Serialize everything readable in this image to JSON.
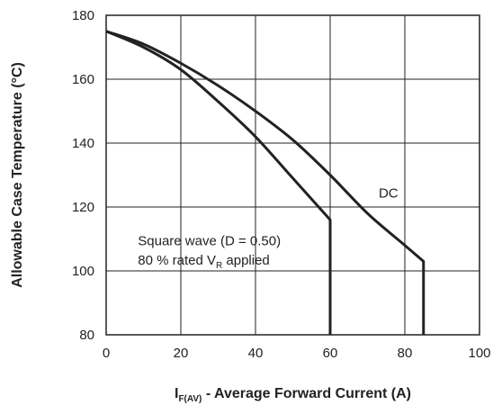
{
  "chart_data": {
    "type": "line",
    "xlabel_main": "I",
    "xlabel_sub": "F(AV)",
    "xlabel_rest": " - Average Forward Current (A)",
    "ylabel": "Allowable Case Temperature (°C)",
    "xlim": [
      0,
      100
    ],
    "ylim": [
      80,
      180
    ],
    "x_ticks": [
      "0",
      "20",
      "40",
      "60",
      "80",
      "100"
    ],
    "y_ticks": [
      "80",
      "100",
      "120",
      "140",
      "160",
      "180"
    ],
    "grid": true,
    "series": [
      {
        "name": "DC",
        "x": [
          0,
          10,
          20,
          30,
          40,
          50,
          60,
          70,
          80,
          85,
          85
        ],
        "y": [
          175,
          171,
          165,
          158,
          150,
          141,
          130,
          118,
          108,
          103,
          80
        ]
      },
      {
        "name": "Square wave",
        "x": [
          0,
          10,
          20,
          30,
          40,
          50,
          60,
          60
        ],
        "y": [
          175,
          170,
          163,
          153,
          142,
          129,
          116,
          80
        ]
      }
    ],
    "annotations": {
      "dc_label": "DC",
      "square_line1": "Square wave (D = 0.50)",
      "square_line2_prefix": "80 % rated V",
      "square_line2_sub": "R",
      "square_line2_suffix": " applied"
    }
  }
}
